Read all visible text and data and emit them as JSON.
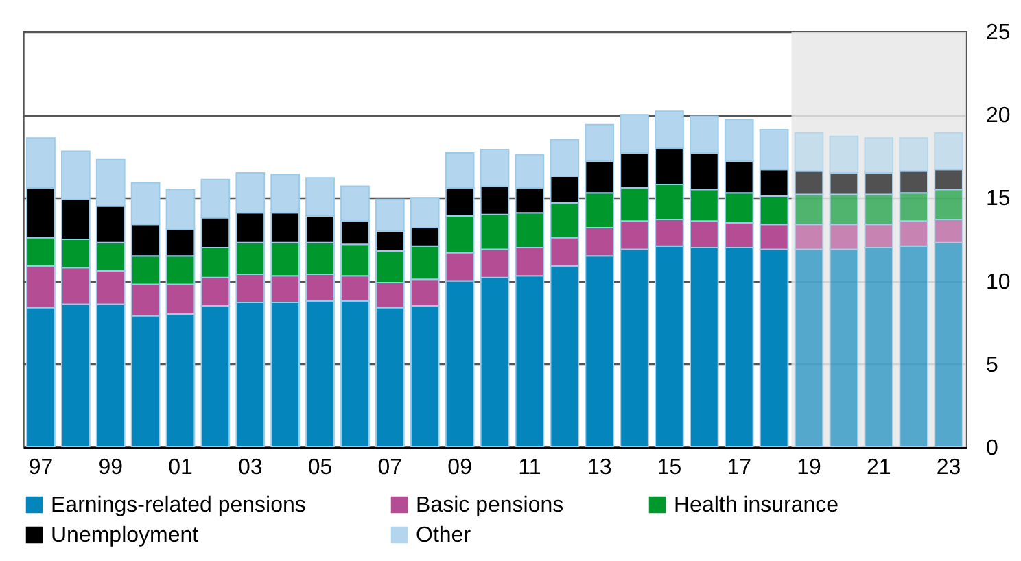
{
  "chart_data": {
    "type": "bar",
    "stacked": true,
    "categories": [
      "97",
      null,
      "99",
      null,
      "01",
      null,
      "03",
      null,
      "05",
      null,
      "07",
      null,
      "09",
      null,
      "11",
      null,
      "13",
      null,
      "15",
      null,
      "17",
      null,
      "19",
      null,
      "21",
      null,
      "23"
    ],
    "series": [
      {
        "name": "Earnings-related pensions",
        "color": "#0485bb",
        "values": [
          8.4,
          8.6,
          8.6,
          7.9,
          8.0,
          8.5,
          8.7,
          8.7,
          8.8,
          8.8,
          8.4,
          8.5,
          10.0,
          10.2,
          10.3,
          10.9,
          11.5,
          11.9,
          12.1,
          12.0,
          12.0,
          11.9,
          11.9,
          11.9,
          12.0,
          12.1,
          12.3
        ]
      },
      {
        "name": "Basic pensions",
        "color": "#b54d94",
        "values": [
          2.5,
          2.2,
          2.0,
          1.9,
          1.8,
          1.7,
          1.7,
          1.6,
          1.6,
          1.5,
          1.5,
          1.6,
          1.7,
          1.7,
          1.7,
          1.7,
          1.7,
          1.7,
          1.6,
          1.6,
          1.5,
          1.5,
          1.5,
          1.5,
          1.4,
          1.5,
          1.4
        ]
      },
      {
        "name": "Health insurance",
        "color": "#00982c",
        "values": [
          1.7,
          1.7,
          1.7,
          1.7,
          1.7,
          1.8,
          1.9,
          2.0,
          1.9,
          1.9,
          1.9,
          2.0,
          2.2,
          2.1,
          2.1,
          2.1,
          2.1,
          2.0,
          2.1,
          1.9,
          1.8,
          1.7,
          1.8,
          1.8,
          1.8,
          1.7,
          1.8
        ]
      },
      {
        "name": "Unemployment",
        "color": "#000000",
        "values": [
          3.0,
          2.4,
          2.2,
          1.9,
          1.6,
          1.8,
          1.8,
          1.8,
          1.6,
          1.4,
          1.2,
          1.1,
          1.7,
          1.7,
          1.5,
          1.6,
          1.9,
          2.1,
          2.2,
          2.2,
          1.9,
          1.6,
          1.4,
          1.3,
          1.3,
          1.3,
          1.2
        ]
      },
      {
        "name": "Other",
        "color": "#b3d6ee",
        "values": [
          3.0,
          2.9,
          2.8,
          2.5,
          2.4,
          2.3,
          2.4,
          2.3,
          2.3,
          2.1,
          1.9,
          1.8,
          2.1,
          2.2,
          2.0,
          2.2,
          2.2,
          2.3,
          2.2,
          2.2,
          2.5,
          2.4,
          2.3,
          2.2,
          2.1,
          2.0,
          2.2
        ]
      }
    ],
    "ylim": [
      0,
      25
    ],
    "yticks": [
      0,
      5,
      10,
      15,
      20,
      25
    ],
    "grid": "y",
    "legend": "bottom",
    "bands": [
      {
        "axis": "x",
        "from": "19",
        "to": "23",
        "color": "#e8e8e8"
      }
    ]
  }
}
